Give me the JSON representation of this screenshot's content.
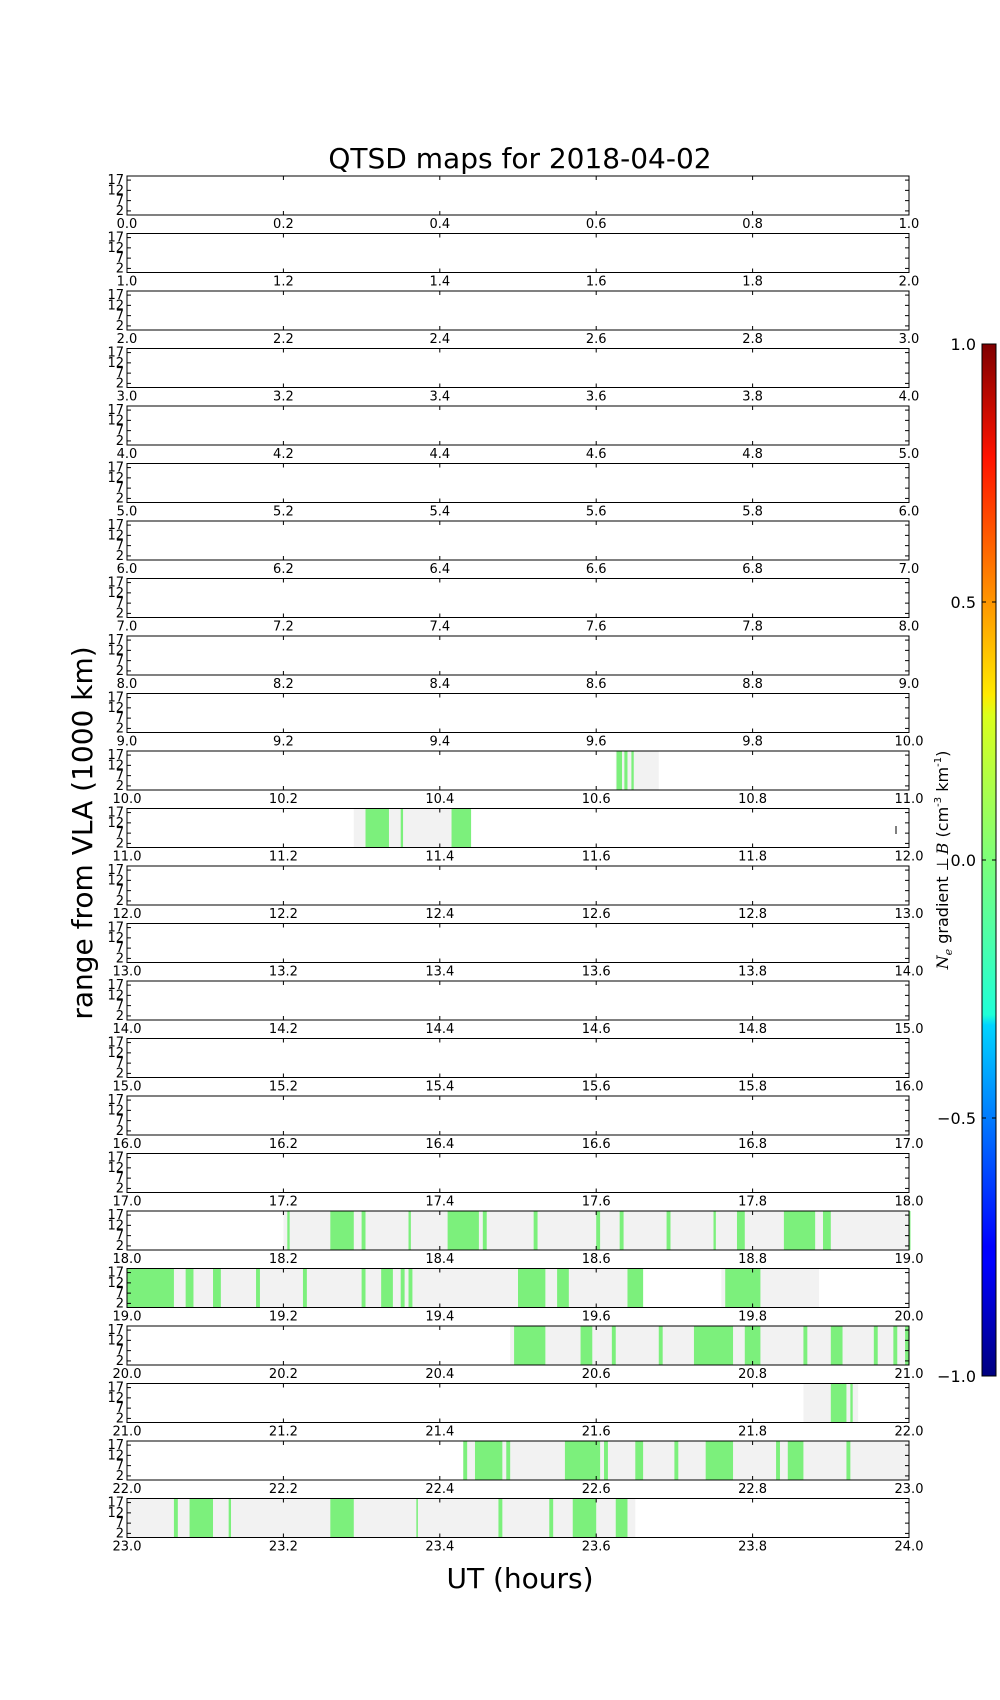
{
  "chart_data": {
    "type": "heatmap",
    "title": "QTSD maps for 2018-04-02",
    "xlabel": "UT (hours)",
    "ylabel": "range from VLA (1000 km)",
    "ytick_labels": [
      "17",
      "12",
      "7",
      "2"
    ],
    "ylim": [
      0,
      19
    ],
    "colorbar": {
      "label_parts": [
        "N",
        "e",
        " gradient ",
        "⊥",
        "B",
        " (cm",
        "-3",
        " km",
        "-1",
        ")"
      ],
      "ticks": [
        -1.0,
        -0.5,
        0.0,
        0.5,
        1.0
      ],
      "tick_labels": [
        "−1.0",
        "−0.5",
        "0.0",
        "0.5",
        "1.0"
      ],
      "range": [
        -1.0,
        1.0
      ],
      "colormap": "jet"
    },
    "colors": {
      "coverage": "#f2f2f2",
      "signal": "#7cf07c"
    },
    "panels": [
      {
        "start": 0,
        "tick_labels": [
          "0.0",
          "0.2",
          "0.4",
          "0.6",
          "0.8",
          "1.0"
        ],
        "coverage": [],
        "signal": []
      },
      {
        "start": 1,
        "tick_labels": [
          "1.0",
          "1.2",
          "1.4",
          "1.6",
          "1.8",
          "2.0"
        ],
        "coverage": [],
        "signal": []
      },
      {
        "start": 2,
        "tick_labels": [
          "2.0",
          "2.2",
          "2.4",
          "2.6",
          "2.8",
          "3.0"
        ],
        "coverage": [],
        "signal": []
      },
      {
        "start": 3,
        "tick_labels": [
          "3.0",
          "3.2",
          "3.4",
          "3.6",
          "3.8",
          "4.0"
        ],
        "coverage": [],
        "signal": []
      },
      {
        "start": 4,
        "tick_labels": [
          "4.0",
          "4.2",
          "4.4",
          "4.6",
          "4.8",
          "5.0"
        ],
        "coverage": [],
        "signal": []
      },
      {
        "start": 5,
        "tick_labels": [
          "5.0",
          "5.2",
          "5.4",
          "5.6",
          "5.8",
          "6.0"
        ],
        "coverage": [],
        "signal": []
      },
      {
        "start": 6,
        "tick_labels": [
          "6.0",
          "6.2",
          "6.4",
          "6.6",
          "6.8",
          "7.0"
        ],
        "coverage": [],
        "signal": []
      },
      {
        "start": 7,
        "tick_labels": [
          "7.0",
          "7.2",
          "7.4",
          "7.6",
          "7.8",
          "8.0"
        ],
        "coverage": [],
        "signal": []
      },
      {
        "start": 8,
        "tick_labels": [
          "8.0",
          "8.2",
          "8.4",
          "8.6",
          "8.8",
          "9.0"
        ],
        "coverage": [],
        "signal": []
      },
      {
        "start": 9,
        "tick_labels": [
          "9.0",
          "9.2",
          "9.4",
          "9.6",
          "9.8",
          "10.0"
        ],
        "coverage": [],
        "signal": []
      },
      {
        "start": 10,
        "tick_labels": [
          "10.0",
          "10.2",
          "10.4",
          "10.6",
          "10.8",
          "11.0"
        ],
        "coverage": [
          [
            10.625,
            10.68
          ]
        ],
        "signal": [
          [
            10.626,
            10.633
          ],
          [
            10.636,
            10.64
          ],
          [
            10.645,
            10.648
          ]
        ]
      },
      {
        "start": 11,
        "tick_labels": [
          "11.0",
          "11.2",
          "11.4",
          "11.6",
          "11.8",
          "12.0"
        ],
        "coverage": [
          [
            11.29,
            11.44
          ]
        ],
        "signal": [
          [
            11.305,
            11.335
          ],
          [
            11.35,
            11.353
          ],
          [
            11.415,
            11.44
          ]
        ]
      },
      {
        "start": 12,
        "tick_labels": [
          "12.0",
          "12.2",
          "12.4",
          "12.6",
          "12.8",
          "13.0"
        ],
        "coverage": [],
        "signal": []
      },
      {
        "start": 13,
        "tick_labels": [
          "13.0",
          "13.2",
          "13.4",
          "13.6",
          "13.8",
          "14.0"
        ],
        "coverage": [],
        "signal": []
      },
      {
        "start": 14,
        "tick_labels": [
          "14.0",
          "14.2",
          "14.4",
          "14.6",
          "14.8",
          "15.0"
        ],
        "coverage": [],
        "signal": []
      },
      {
        "start": 15,
        "tick_labels": [
          "15.0",
          "15.2",
          "15.4",
          "15.6",
          "15.8",
          "16.0"
        ],
        "coverage": [],
        "signal": []
      },
      {
        "start": 16,
        "tick_labels": [
          "16.0",
          "16.2",
          "16.4",
          "16.6",
          "16.8",
          "17.0"
        ],
        "coverage": [],
        "signal": []
      },
      {
        "start": 17,
        "tick_labels": [
          "17.0",
          "17.2",
          "17.4",
          "17.6",
          "17.8",
          "18.0"
        ],
        "coverage": [],
        "signal": []
      },
      {
        "start": 18,
        "tick_labels": [
          "18.0",
          "18.2",
          "18.4",
          "18.6",
          "18.8",
          "19.0"
        ],
        "coverage": [
          [
            18.2,
            19.0
          ]
        ],
        "signal": [
          [
            18.205,
            18.208
          ],
          [
            18.26,
            18.29
          ],
          [
            18.3,
            18.305
          ],
          [
            18.36,
            18.363
          ],
          [
            18.41,
            18.45
          ],
          [
            18.455,
            18.46
          ],
          [
            18.52,
            18.525
          ],
          [
            18.6,
            18.605
          ],
          [
            18.63,
            18.635
          ],
          [
            18.69,
            18.695
          ],
          [
            18.75,
            18.753
          ],
          [
            18.78,
            18.79
          ],
          [
            18.84,
            18.88
          ],
          [
            18.89,
            18.9
          ],
          [
            19.0,
            19.0
          ]
        ]
      },
      {
        "start": 19,
        "tick_labels": [
          "19.0",
          "19.2",
          "19.4",
          "19.6",
          "19.8",
          "20.0"
        ],
        "coverage": [
          [
            19.0,
            19.66
          ],
          [
            19.76,
            19.885
          ]
        ],
        "signal": [
          [
            19.0,
            19.06
          ],
          [
            19.075,
            19.085
          ],
          [
            19.11,
            19.12
          ],
          [
            19.165,
            19.17
          ],
          [
            19.225,
            19.23
          ],
          [
            19.3,
            19.305
          ],
          [
            19.325,
            19.34
          ],
          [
            19.35,
            19.355
          ],
          [
            19.36,
            19.365
          ],
          [
            19.5,
            19.535
          ],
          [
            19.55,
            19.565
          ],
          [
            19.64,
            19.66
          ],
          [
            19.765,
            19.81
          ]
        ]
      },
      {
        "start": 20,
        "tick_labels": [
          "20.0",
          "20.2",
          "20.4",
          "20.6",
          "20.8",
          "21.0"
        ],
        "coverage": [
          [
            20.49,
            21.0
          ]
        ],
        "signal": [
          [
            20.495,
            20.535
          ],
          [
            20.58,
            20.595
          ],
          [
            20.62,
            20.625
          ],
          [
            20.68,
            20.685
          ],
          [
            20.725,
            20.775
          ],
          [
            20.79,
            20.81
          ],
          [
            20.865,
            20.87
          ],
          [
            20.9,
            20.915
          ],
          [
            20.955,
            20.96
          ],
          [
            20.98,
            20.985
          ],
          [
            20.995,
            21.0
          ]
        ]
      },
      {
        "start": 21,
        "tick_labels": [
          "21.0",
          "21.2",
          "21.4",
          "21.6",
          "21.8",
          "22.0"
        ],
        "coverage": [
          [
            21.865,
            21.935
          ]
        ],
        "signal": [
          [
            21.9,
            21.92
          ],
          [
            21.925,
            21.928
          ]
        ]
      },
      {
        "start": 22,
        "tick_labels": [
          "22.0",
          "22.2",
          "22.4",
          "22.6",
          "22.8",
          "23.0"
        ],
        "coverage": [
          [
            22.43,
            23.0
          ]
        ],
        "signal": [
          [
            22.43,
            22.435
          ],
          [
            22.445,
            22.48
          ],
          [
            22.485,
            22.49
          ],
          [
            22.56,
            22.605
          ],
          [
            22.61,
            22.615
          ],
          [
            22.65,
            22.66
          ],
          [
            22.7,
            22.705
          ],
          [
            22.74,
            22.775
          ],
          [
            22.83,
            22.835
          ],
          [
            22.845,
            22.865
          ],
          [
            22.92,
            22.925
          ]
        ]
      },
      {
        "start": 23,
        "tick_labels": [
          "23.0",
          "23.2",
          "23.4",
          "23.6",
          "23.8",
          "24.0"
        ],
        "coverage": [
          [
            23.0,
            23.65
          ]
        ],
        "signal": [
          [
            23.06,
            23.065
          ],
          [
            23.08,
            23.11
          ],
          [
            23.13,
            23.133
          ],
          [
            23.26,
            23.29
          ],
          [
            23.37,
            23.372
          ],
          [
            23.475,
            23.48
          ],
          [
            23.54,
            23.545
          ],
          [
            23.57,
            23.6
          ],
          [
            23.625,
            23.64
          ]
        ]
      }
    ]
  }
}
